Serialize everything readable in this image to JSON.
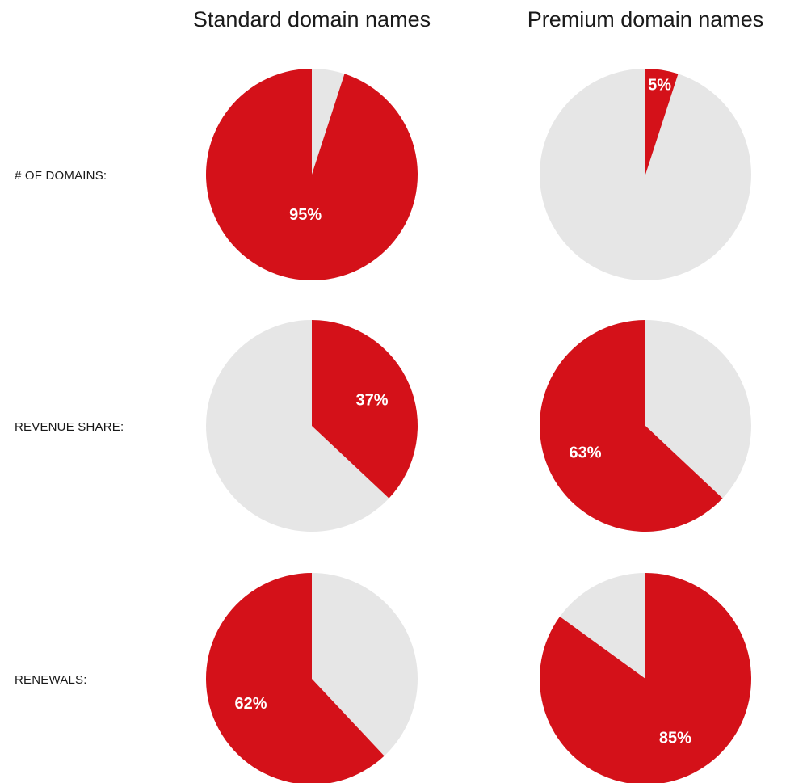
{
  "chart_data": {
    "type": "pie",
    "columns": [
      "Standard domain names",
      "Premium domain names"
    ],
    "rows": [
      "# OF DOMAINS:",
      "REVENUE SHARE:",
      "RENEWALS:"
    ],
    "colors": {
      "highlight": "#d41119",
      "rest": "#e6e6e6"
    },
    "cells": [
      [
        {
          "value": 95,
          "label": "95%"
        },
        {
          "value": 5,
          "label": "5%"
        }
      ],
      [
        {
          "value": 37,
          "label": "37%"
        },
        {
          "value": 63,
          "label": "63%"
        }
      ],
      [
        {
          "value": 62,
          "label": "62%"
        },
        {
          "value": 85,
          "label": "85%"
        }
      ]
    ]
  }
}
